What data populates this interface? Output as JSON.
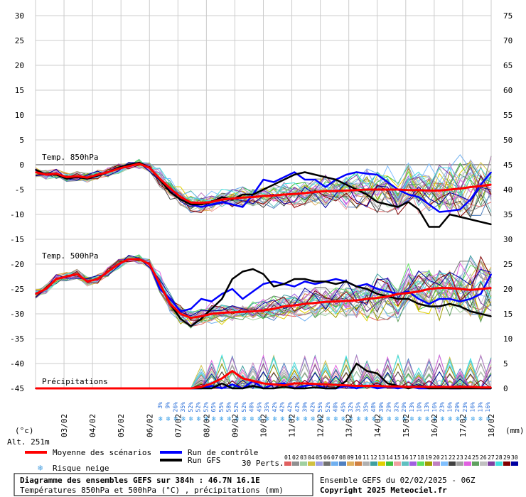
{
  "chart_data": {
    "type": "line",
    "title": "Diagramme des ensembles GEFS sur 384h : 46.7N 16.1E",
    "subtitle": "Températures 850hPa et 500hPa (°C) , précipitations (mm)",
    "left_axis": {
      "unit_label": "(°c)",
      "ticks": [
        30,
        25,
        20,
        15,
        10,
        5,
        0,
        -5,
        -10,
        -15,
        -20,
        -25,
        -30,
        -35,
        -40,
        -45
      ],
      "range": [
        -45,
        30
      ]
    },
    "right_axis": {
      "unit_label": "(mm)",
      "ticks": [
        75,
        70,
        65,
        60,
        55,
        50,
        45,
        40,
        35,
        30,
        25,
        20,
        15,
        10,
        5,
        0
      ],
      "range": [
        0,
        75
      ]
    },
    "x_dates": [
      "03/02",
      "04/02",
      "05/02",
      "06/02",
      "07/02",
      "08/02",
      "09/02",
      "10/02",
      "11/02",
      "12/02",
      "13/02",
      "14/02",
      "15/02",
      "16/02",
      "17/02",
      "18/02"
    ],
    "altitude_label": "Alt. 251m",
    "section_labels": {
      "t850": "Temp. 850hPa",
      "t500": "Temp. 500hPa",
      "precip": "Précipitations"
    },
    "snow_risk_percent": [
      "3%",
      "9%",
      "26%",
      "35%",
      "52%",
      "52%",
      "52%",
      "65%",
      "55%",
      "58%",
      "52%",
      "52%",
      "48%",
      "45%",
      "35%",
      "42%",
      "42%",
      "42%",
      "42%",
      "39%",
      "42%",
      "55%",
      "52%",
      "48%",
      "45%",
      "32%",
      "35%",
      "35%",
      "48%",
      "39%",
      "29%",
      "32%",
      "29%",
      "13%",
      "10%",
      "13%",
      "16%",
      "23%",
      "16%",
      "29%",
      "23%",
      "16%",
      "13%",
      "16%"
    ],
    "series": [
      {
        "name": "Moyenne des scénarios",
        "color": "#ff0000",
        "t850": [
          -1.5,
          -2,
          -1.8,
          -2.5,
          -2.3,
          -2.6,
          -2,
          -1.5,
          -0.8,
          -0.3,
          0.2,
          -0.6,
          -2.8,
          -4.8,
          -6.5,
          -7.6,
          -7.7,
          -7.5,
          -7,
          -6.8,
          -6.6,
          -6.5,
          -6.3,
          -6.2,
          -6,
          -5.9,
          -5.7,
          -5.5,
          -5.3,
          -5.3,
          -5.2,
          -5.1,
          -5,
          -5,
          -5,
          -5,
          -5.1,
          -5.1,
          -5.2,
          -5.2,
          -5,
          -4.8,
          -4.5,
          -4.3,
          -4
        ],
        "t500": [
          -26,
          -25,
          -23,
          -22.5,
          -22,
          -23.5,
          -23,
          -21.5,
          -20,
          -19,
          -19,
          -20,
          -24,
          -28,
          -30,
          -30.8,
          -30.5,
          -30,
          -29.8,
          -29.7,
          -29.6,
          -29.5,
          -29.3,
          -29,
          -28.5,
          -28.3,
          -28,
          -27.8,
          -27.6,
          -27.5,
          -27.4,
          -27.3,
          -27,
          -26.8,
          -26.5,
          -26,
          -25.8,
          -25.5,
          -25,
          -24.8,
          -24.8,
          -25,
          -25.2,
          -25,
          -24.8
        ],
        "precip": [
          0,
          0,
          0,
          0,
          0,
          0,
          0,
          0,
          0,
          0,
          0,
          0,
          0,
          0,
          0,
          0,
          0.3,
          1,
          2,
          3.5,
          2,
          1.5,
          1,
          0.8,
          0.6,
          1,
          1,
          0.9,
          0.8,
          0.7,
          0.6,
          0.5,
          0.5,
          0.5,
          0.4,
          0.4,
          0.3,
          0.3,
          0.3,
          0.3,
          0.3,
          0.3,
          0.3,
          0.2,
          0.2
        ]
      },
      {
        "name": "Run de contrôle",
        "color": "#0000ff",
        "t850": [
          -1,
          -2,
          -2,
          -2.8,
          -2.5,
          -2.8,
          -2.2,
          -1.5,
          -0.6,
          0,
          0.4,
          -0.5,
          -3,
          -5,
          -6.5,
          -8,
          -8.5,
          -8,
          -7.5,
          -8,
          -8.5,
          -6,
          -3,
          -3.5,
          -2.5,
          -1.5,
          -3,
          -3,
          -4.5,
          -3,
          -2,
          -1.5,
          -1.8,
          -2,
          -3.5,
          -5,
          -6,
          -6.5,
          -8,
          -9.5,
          -9.3,
          -9,
          -7,
          -4,
          -1.5
        ],
        "t500": [
          -26,
          -25,
          -23,
          -22.5,
          -22,
          -23.5,
          -23,
          -21.5,
          -20,
          -19,
          -19,
          -20,
          -25,
          -27,
          -29.5,
          -29,
          -27,
          -27.5,
          -26,
          -25,
          -27,
          -25.5,
          -24,
          -23.5,
          -24,
          -24.5,
          -23.5,
          -24,
          -23.5,
          -23,
          -23.5,
          -24.5,
          -24,
          -25,
          -25.5,
          -26,
          -25.5,
          -27,
          -28,
          -27,
          -27,
          -27.5,
          -27,
          -26,
          -22
        ],
        "precip": [
          0,
          0,
          0,
          0,
          0,
          0,
          0,
          0,
          0,
          0,
          0,
          0,
          0,
          0,
          0,
          0,
          0,
          0.5,
          0,
          0.8,
          0,
          1.5,
          0,
          0.8,
          1,
          0,
          0.5,
          0.8,
          0,
          0,
          0.5,
          0,
          0.6,
          0,
          0.3,
          0,
          0.4,
          0,
          0,
          0.5,
          0,
          0,
          0.3,
          0,
          0
        ]
      },
      {
        "name": "Run GFS",
        "color": "#000000",
        "t850": [
          -1,
          -2,
          -2,
          -2.8,
          -2.5,
          -2.8,
          -2.2,
          -1.5,
          -0.6,
          0,
          0.4,
          -0.5,
          -3,
          -5.5,
          -7,
          -8,
          -8,
          -7.5,
          -6.5,
          -7,
          -6,
          -6,
          -5,
          -4,
          -3,
          -2,
          -1.5,
          -2,
          -2.5,
          -3,
          -4,
          -5,
          -6,
          -7.5,
          -8,
          -8.5,
          -7.5,
          -9,
          -12.5,
          -12.5,
          -10,
          -10.5,
          -11,
          -11.5,
          -12
        ],
        "t500": [
          -26,
          -25,
          -23,
          -22.5,
          -22,
          -23.5,
          -23,
          -21.5,
          -20,
          -19,
          -19,
          -20,
          -24,
          -28,
          -31,
          -32.5,
          -31,
          -29,
          -27,
          -23,
          -21.5,
          -21,
          -22,
          -24.5,
          -24,
          -23,
          -23,
          -23.5,
          -23.5,
          -24,
          -23.5,
          -24.5,
          -25,
          -26,
          -26.5,
          -27,
          -27,
          -28,
          -28.5,
          -28.5,
          -28,
          -28.5,
          -29.5,
          -30,
          -30.5
        ],
        "precip": [
          0,
          0,
          0,
          0,
          0,
          0,
          0,
          0,
          0,
          0,
          0,
          0,
          0,
          0,
          0,
          0,
          0,
          0,
          1,
          0,
          0,
          0.5,
          0,
          0,
          0.3,
          0,
          0,
          0.2,
          0,
          0,
          1.5,
          5,
          3.5,
          3,
          1,
          0.5,
          0,
          0.5,
          0,
          0,
          0,
          0,
          0,
          0,
          0
        ]
      }
    ],
    "legend": {
      "mean": "Moyenne des scénarios",
      "control": "Run de contrôle",
      "gfs": "Run GFS",
      "snow_risk": "Risque neige",
      "perturbations": "30 Perts.",
      "pert_codes": [
        "01",
        "02",
        "03",
        "04",
        "05",
        "06",
        "07",
        "08",
        "09",
        "10",
        "11",
        "12",
        "13",
        "14",
        "15",
        "16",
        "17",
        "18",
        "19",
        "20",
        "21",
        "22",
        "23",
        "24",
        "25",
        "26",
        "27",
        "28",
        "29",
        "30"
      ],
      "pert_colors": [
        "#e06060",
        "#909090",
        "#a0d0a0",
        "#d0c040",
        "#a0a0e0",
        "#707070",
        "#70b0f0",
        "#5080c0",
        "#e0b060",
        "#d08040",
        "#b0b0b0",
        "#40a0a0",
        "#e0d000",
        "#40c040",
        "#f0a0a0",
        "#60c0c0",
        "#a060e0",
        "#60e060",
        "#a0a000",
        "#c080c0",
        "#80c0ff",
        "#404040",
        "#a0a0a0",
        "#e060e0",
        "#60a060",
        "#c0c0c0",
        "#8040a0",
        "#40e0e0",
        "#800000",
        "#0000a0"
      ]
    },
    "footer": {
      "left_line1": "Diagramme des ensembles GEFS sur 384h : 46.7N 16.1E",
      "left_line2": "Températures 850hPa et 500hPa (°C) , précipitations (mm)",
      "right_line1": "Ensemble GEFS du 02/02/2025 - 06Z",
      "right_line2": "Copyright 2025 Meteociel.fr"
    }
  }
}
